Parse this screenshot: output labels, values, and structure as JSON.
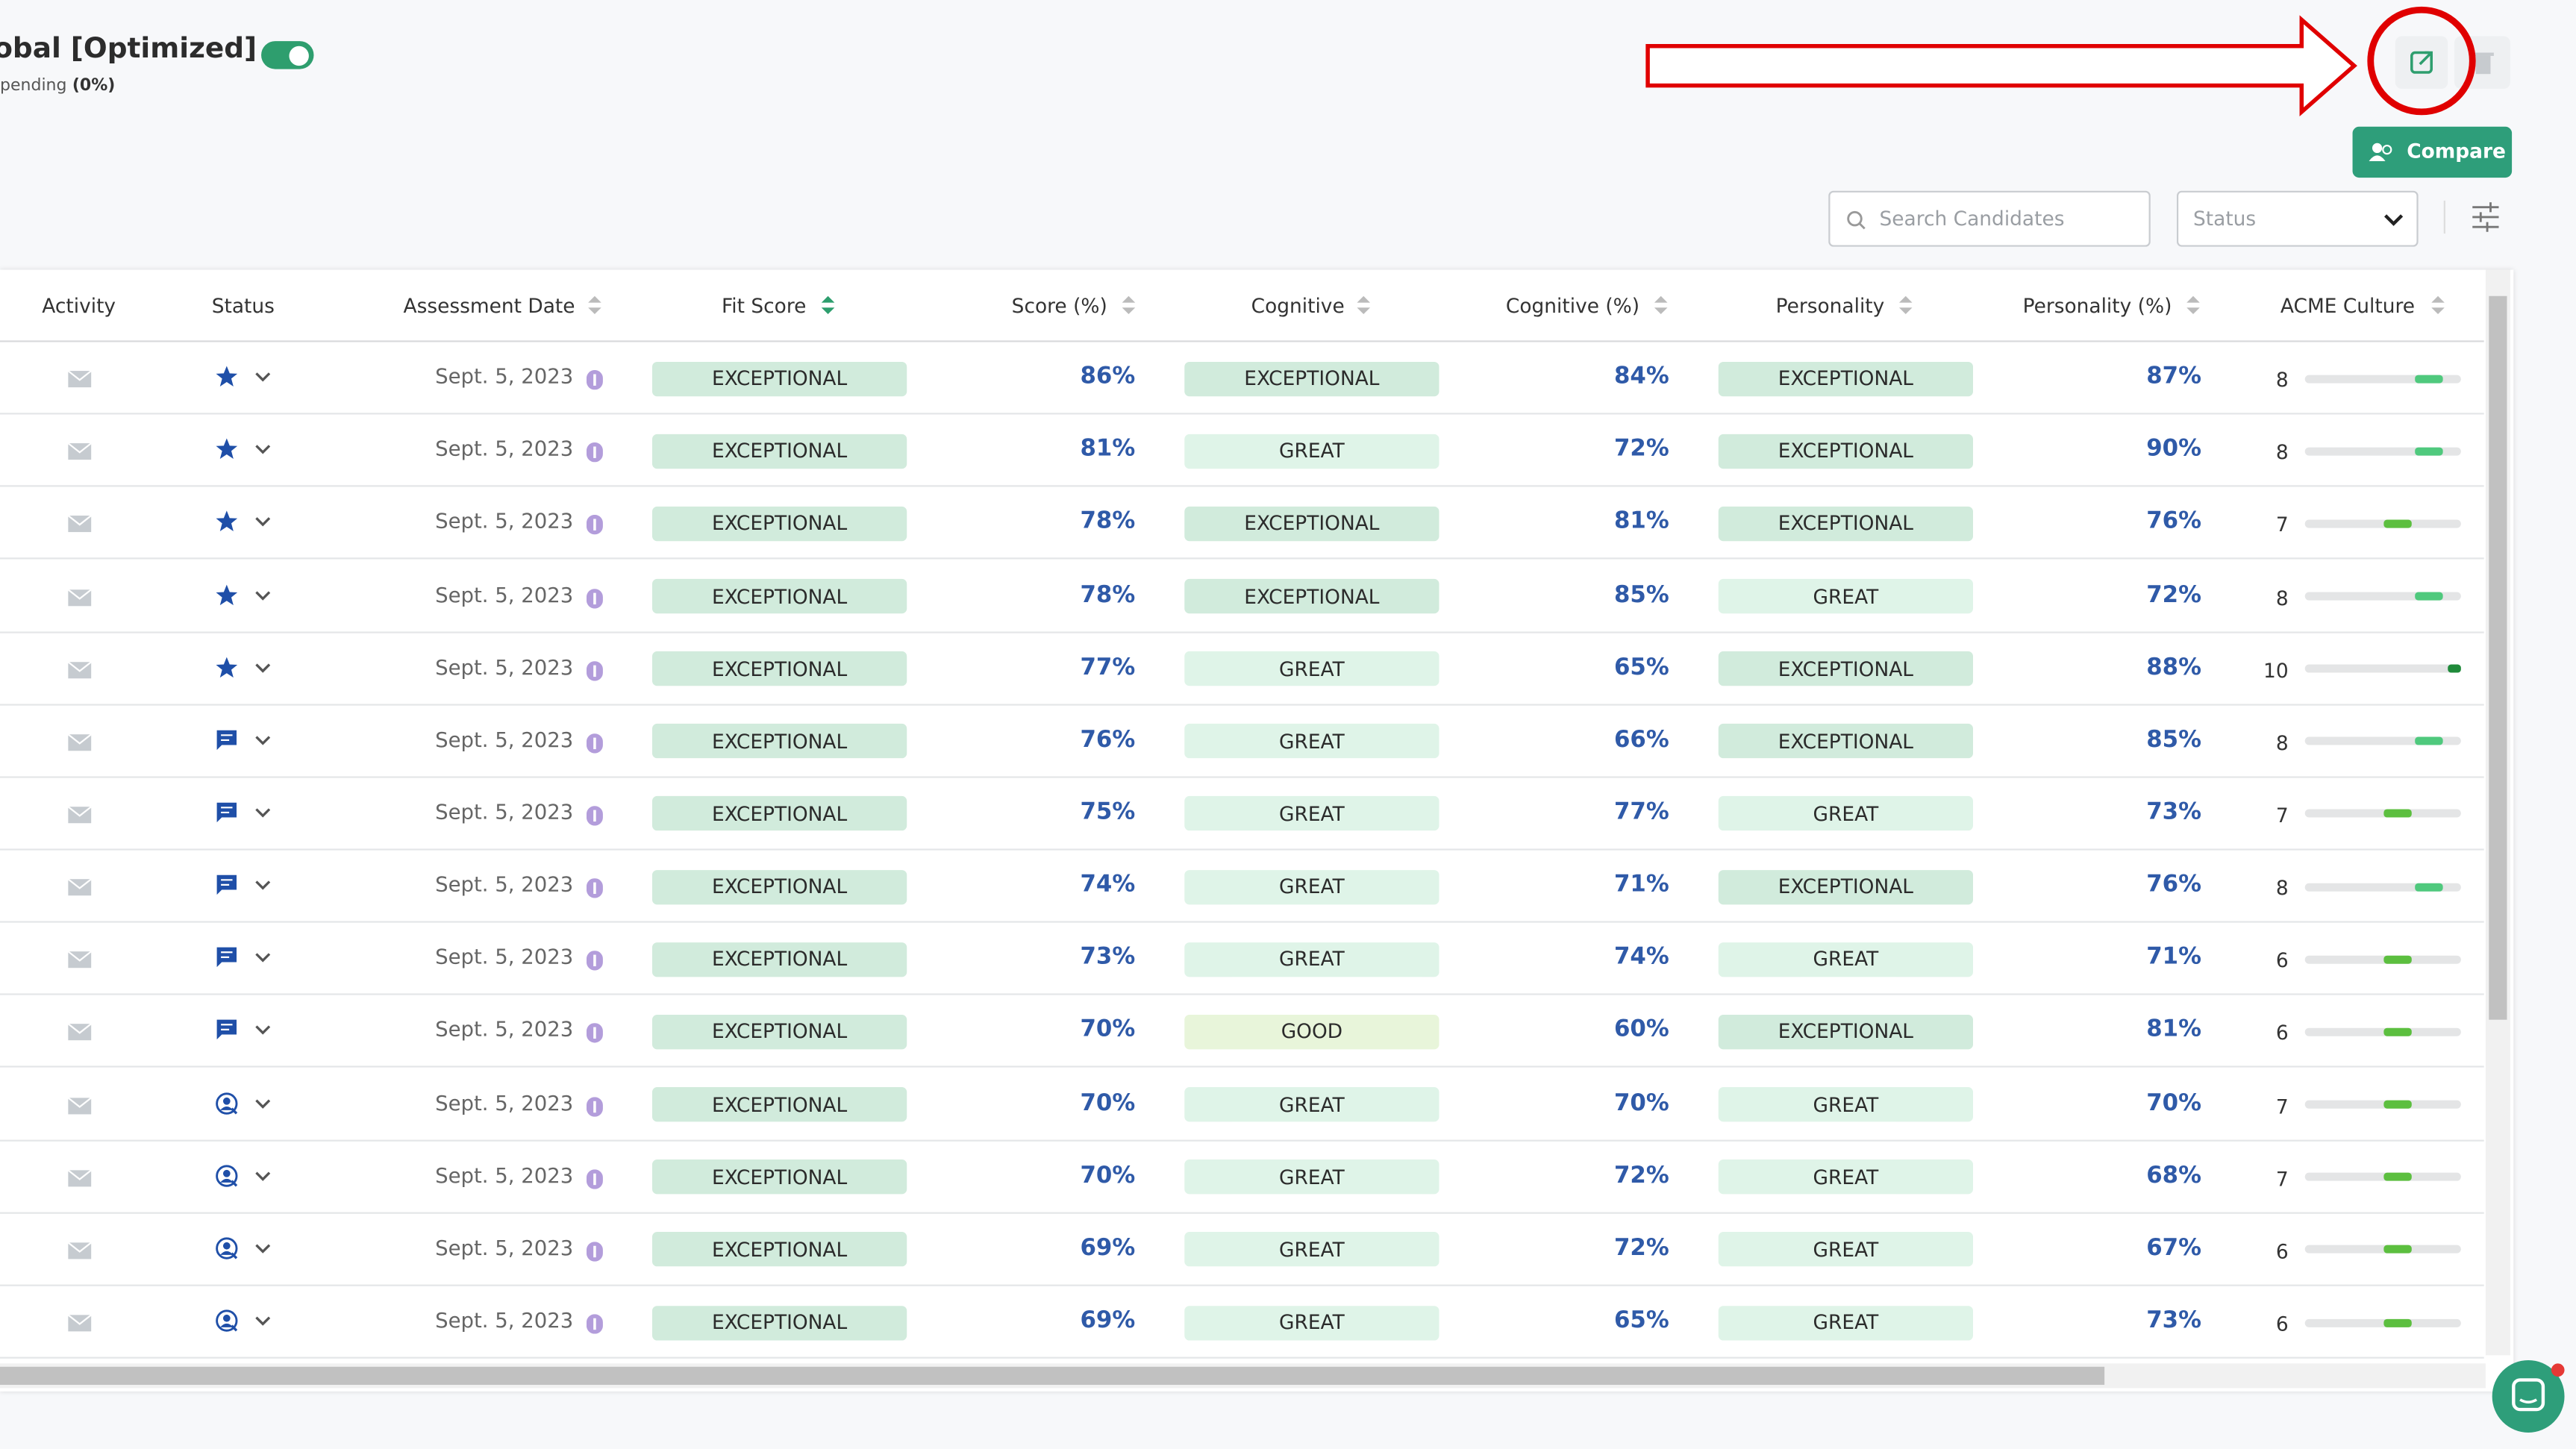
{
  "header": {
    "title": "obal [Optimized]",
    "subtitle": "pending",
    "subtitle_value": "(0%)"
  },
  "toolbar": {
    "compare": "Compare",
    "search_placeholder": "Search Candidates",
    "status_placeholder": "Status"
  },
  "table": {
    "columns": [
      "Activity",
      "Status",
      "Assessment Date",
      "Fit Score",
      "Score (%)",
      "Cognitive",
      "Cognitive (%)",
      "Personality",
      "Personality (%)",
      "ACME Culture"
    ],
    "rows": [
      [
        "Sept. 5, 2023",
        "EXCEPTIONAL",
        "86%",
        "EXCEPTIONAL",
        "84%",
        "EXCEPTIONAL",
        "87%",
        8
      ],
      [
        "Sept. 5, 2023",
        "EXCEPTIONAL",
        "81%",
        "GREAT",
        "72%",
        "EXCEPTIONAL",
        "90%",
        8
      ],
      [
        "Sept. 5, 2023",
        "EXCEPTIONAL",
        "78%",
        "EXCEPTIONAL",
        "81%",
        "EXCEPTIONAL",
        "76%",
        7
      ],
      [
        "Sept. 5, 2023",
        "EXCEPTIONAL",
        "78%",
        "EXCEPTIONAL",
        "85%",
        "GREAT",
        "72%",
        8
      ],
      [
        "Sept. 5, 2023",
        "EXCEPTIONAL",
        "77%",
        "GREAT",
        "65%",
        "EXCEPTIONAL",
        "88%",
        10
      ],
      [
        "Sept. 5, 2023",
        "EXCEPTIONAL",
        "76%",
        "GREAT",
        "66%",
        "EXCEPTIONAL",
        "85%",
        8
      ],
      [
        "Sept. 5, 2023",
        "EXCEPTIONAL",
        "75%",
        "GREAT",
        "77%",
        "GREAT",
        "73%",
        7
      ],
      [
        "Sept. 5, 2023",
        "EXCEPTIONAL",
        "74%",
        "GREAT",
        "71%",
        "EXCEPTIONAL",
        "76%",
        8
      ],
      [
        "Sept. 5, 2023",
        "EXCEPTIONAL",
        "73%",
        "GREAT",
        "74%",
        "GREAT",
        "71%",
        6
      ],
      [
        "Sept. 5, 2023",
        "EXCEPTIONAL",
        "70%",
        "GOOD",
        "60%",
        "EXCEPTIONAL",
        "81%",
        6
      ],
      [
        "Sept. 5, 2023",
        "EXCEPTIONAL",
        "70%",
        "GREAT",
        "70%",
        "GREAT",
        "70%",
        7
      ],
      [
        "Sept. 5, 2023",
        "EXCEPTIONAL",
        "70%",
        "GREAT",
        "72%",
        "GREAT",
        "68%",
        7
      ],
      [
        "Sept. 5, 2023",
        "EXCEPTIONAL",
        "69%",
        "GREAT",
        "72%",
        "GREAT",
        "67%",
        6
      ],
      [
        "Sept. 5, 2023",
        "EXCEPTIONAL",
        "69%",
        "GREAT",
        "65%",
        "GREAT",
        "73%",
        6
      ]
    ]
  }
}
